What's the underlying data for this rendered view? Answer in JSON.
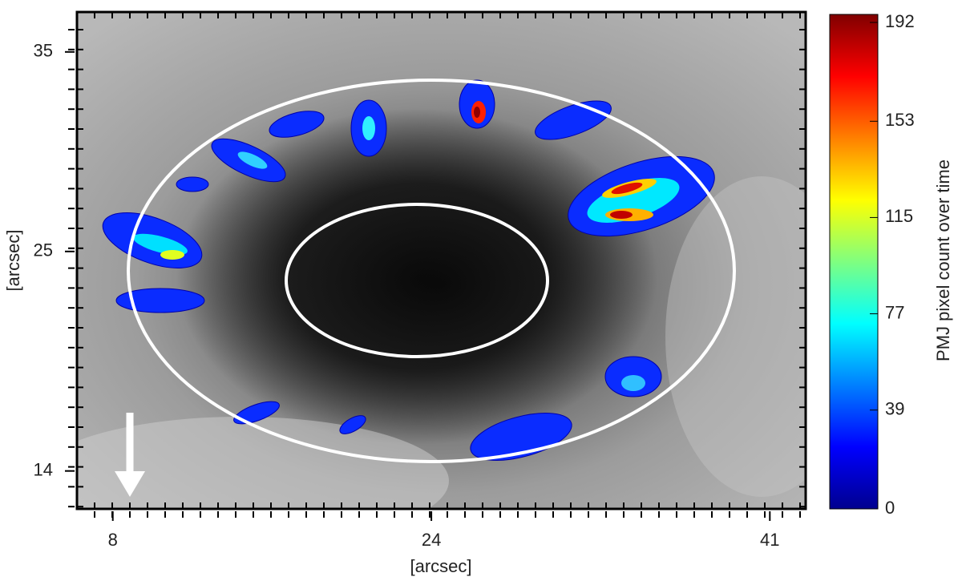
{
  "chart_data": {
    "type": "image",
    "xlabel": "[arcsec]",
    "ylabel": "[arcsec]",
    "xlim": [
      6.2,
      42.8
    ],
    "xticks": [
      8,
      24,
      41
    ],
    "ylim": [
      12.1,
      37.0
    ],
    "yticks": [
      14,
      25,
      35
    ],
    "colorbar": {
      "label": "PMJ pixel count over time",
      "clim": [
        0,
        192
      ],
      "ticks": [
        0,
        39,
        77,
        115,
        153,
        192
      ],
      "colormap": "jet"
    }
  }
}
